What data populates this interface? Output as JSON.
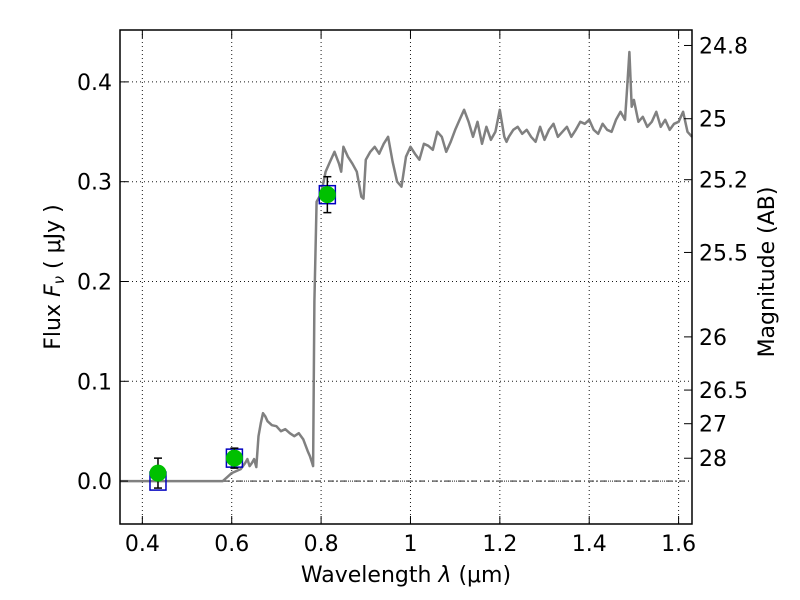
{
  "colors": {
    "model_line": "#808080",
    "observed_point": "#00c000",
    "model_box": "#0000c0",
    "axis": "#000000"
  },
  "chart_data": {
    "type": "line",
    "xlabel_prefix": "Wavelength",
    "xlabel_symbol": "λ",
    "xlabel_unit": "(μm)",
    "ylabel_prefix": "Flux",
    "ylabel_symbol": "F",
    "ylabel_subscript": "ν",
    "ylabel_unit": "( μJy )",
    "y2label": "Magnitude (AB)",
    "xlim": [
      0.35,
      1.63
    ],
    "ylim": [
      -0.043,
      0.452
    ],
    "grid": true,
    "zero_line": 0.0,
    "x_ticks": [
      {
        "value": 0.4,
        "label": "0.4"
      },
      {
        "value": 0.6,
        "label": "0.6"
      },
      {
        "value": 0.8,
        "label": "0.8"
      },
      {
        "value": 1.0,
        "label": "1"
      },
      {
        "value": 1.2,
        "label": "1.2"
      },
      {
        "value": 1.4,
        "label": "1.4"
      },
      {
        "value": 1.6,
        "label": "1.6"
      }
    ],
    "y_ticks": [
      {
        "value": 0.0,
        "label": "0.0"
      },
      {
        "value": 0.1,
        "label": "0.1"
      },
      {
        "value": 0.2,
        "label": "0.2"
      },
      {
        "value": 0.3,
        "label": "0.3"
      },
      {
        "value": 0.4,
        "label": "0.4"
      }
    ],
    "y2_ticks": [
      {
        "flux": 0.4365,
        "label": "24.8"
      },
      {
        "flux": 0.3631,
        "label": "25"
      },
      {
        "flux": 0.302,
        "label": "25.2"
      },
      {
        "flux": 0.2291,
        "label": "25.5"
      },
      {
        "flux": 0.1445,
        "label": "26"
      },
      {
        "flux": 0.0912,
        "label": "26.5"
      },
      {
        "flux": 0.0575,
        "label": "27"
      },
      {
        "flux": 0.0229,
        "label": "28"
      }
    ],
    "series": [
      {
        "kind": "model_sed",
        "x": [
          0.35,
          0.4,
          0.45,
          0.5,
          0.55,
          0.58,
          0.59,
          0.6,
          0.61,
          0.62,
          0.63,
          0.635,
          0.64,
          0.645,
          0.65,
          0.655,
          0.66,
          0.665,
          0.67,
          0.675,
          0.68,
          0.69,
          0.7,
          0.71,
          0.72,
          0.73,
          0.74,
          0.75,
          0.76,
          0.77,
          0.775,
          0.78,
          0.782,
          0.785,
          0.79,
          0.8,
          0.81,
          0.82,
          0.83,
          0.84,
          0.845,
          0.85,
          0.86,
          0.87,
          0.88,
          0.89,
          0.895,
          0.9,
          0.91,
          0.92,
          0.93,
          0.94,
          0.95,
          0.96,
          0.97,
          0.98,
          0.99,
          1.0,
          1.01,
          1.02,
          1.03,
          1.04,
          1.05,
          1.06,
          1.07,
          1.08,
          1.09,
          1.1,
          1.11,
          1.12,
          1.13,
          1.14,
          1.15,
          1.16,
          1.17,
          1.18,
          1.19,
          1.2,
          1.21,
          1.215,
          1.22,
          1.23,
          1.24,
          1.25,
          1.26,
          1.27,
          1.28,
          1.29,
          1.3,
          1.31,
          1.32,
          1.33,
          1.34,
          1.35,
          1.36,
          1.37,
          1.38,
          1.39,
          1.4,
          1.41,
          1.42,
          1.43,
          1.44,
          1.45,
          1.46,
          1.47,
          1.48,
          1.485,
          1.49,
          1.495,
          1.5,
          1.51,
          1.52,
          1.53,
          1.54,
          1.55,
          1.56,
          1.57,
          1.58,
          1.59,
          1.6,
          1.61,
          1.62,
          1.63
        ],
        "y": [
          0.0,
          0.0,
          0.0,
          0.0,
          0.0,
          0.0,
          0.004,
          0.008,
          0.01,
          0.012,
          0.018,
          0.022,
          0.015,
          0.018,
          0.022,
          0.014,
          0.045,
          0.058,
          0.068,
          0.065,
          0.06,
          0.056,
          0.055,
          0.05,
          0.052,
          0.048,
          0.045,
          0.048,
          0.042,
          0.03,
          0.025,
          0.018,
          0.015,
          0.18,
          0.28,
          0.288,
          0.31,
          0.32,
          0.33,
          0.318,
          0.31,
          0.335,
          0.325,
          0.318,
          0.31,
          0.285,
          0.283,
          0.322,
          0.33,
          0.335,
          0.328,
          0.338,
          0.345,
          0.32,
          0.3,
          0.295,
          0.325,
          0.335,
          0.328,
          0.322,
          0.338,
          0.336,
          0.332,
          0.35,
          0.345,
          0.33,
          0.34,
          0.352,
          0.362,
          0.372,
          0.36,
          0.345,
          0.36,
          0.338,
          0.355,
          0.342,
          0.35,
          0.372,
          0.345,
          0.34,
          0.345,
          0.352,
          0.355,
          0.348,
          0.352,
          0.345,
          0.34,
          0.355,
          0.342,
          0.352,
          0.358,
          0.345,
          0.35,
          0.355,
          0.345,
          0.352,
          0.36,
          0.358,
          0.362,
          0.352,
          0.348,
          0.358,
          0.352,
          0.35,
          0.362,
          0.37,
          0.362,
          0.395,
          0.43,
          0.375,
          0.382,
          0.36,
          0.365,
          0.355,
          0.36,
          0.37,
          0.355,
          0.362,
          0.352,
          0.358,
          0.36,
          0.37,
          0.35,
          0.345
        ]
      }
    ],
    "observed_points": [
      {
        "x": 0.435,
        "y": 0.008,
        "err": 0.015
      },
      {
        "x": 0.606,
        "y": 0.023,
        "err": 0.01
      },
      {
        "x": 0.814,
        "y": 0.287,
        "err": 0.018
      }
    ],
    "model_boxes": [
      {
        "x": 0.435,
        "y": 0.0
      },
      {
        "x": 0.606,
        "y": 0.023
      },
      {
        "x": 0.814,
        "y": 0.287
      }
    ]
  }
}
